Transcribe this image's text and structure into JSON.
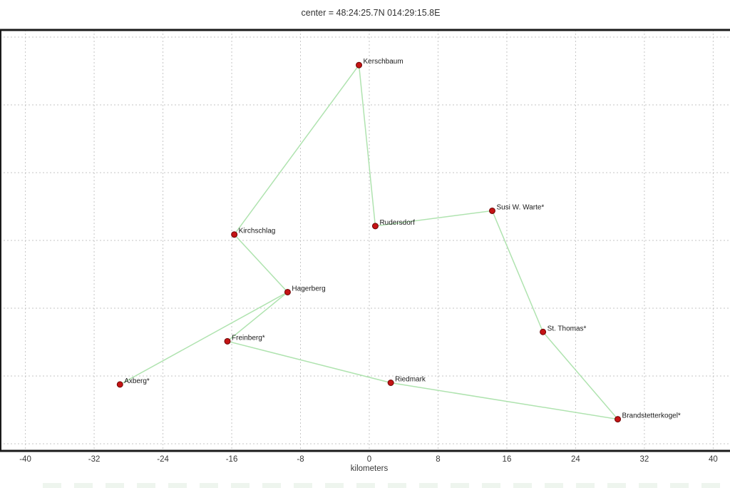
{
  "title": "center = 48:24:25.7N 014:29:15.8E",
  "colors": {
    "marker_fill": "#c41414",
    "marker_edge": "#6e0606",
    "route_line": "#afe3af",
    "grid": "#c6c6c6",
    "border": "#1a1a1a",
    "label_text": "#1a1a1a",
    "tick_text": "#383838"
  },
  "axis": {
    "x_label": "kilometers",
    "x_ticks": [
      -40,
      -32,
      -24,
      -16,
      -8,
      0,
      8,
      16,
      24,
      32,
      40
    ],
    "y_gridline_values": [
      -24,
      -16,
      -8,
      0,
      8,
      16,
      24
    ]
  },
  "chart_data": {
    "type": "scatter",
    "title": "center = 48:24:25.7N 014:29:15.8E",
    "xlabel": "kilometers",
    "ylabel": "",
    "x_ticks": [
      -40,
      -32,
      -24,
      -16,
      -8,
      0,
      8,
      16,
      24,
      32,
      40
    ],
    "xlim": [
      -43,
      42
    ],
    "ylim": [
      -25,
      25
    ],
    "grid": true,
    "legend": false,
    "units": "kilometers from center",
    "points": [
      {
        "name": "Kerschbaum",
        "x": -1.2,
        "y": 20.7
      },
      {
        "name": "Rudersdorf",
        "x": 0.7,
        "y": 1.7
      },
      {
        "name": "Susi W. Warte*",
        "x": 14.3,
        "y": 3.5
      },
      {
        "name": "Kirchschlag",
        "x": -15.7,
        "y": 0.7
      },
      {
        "name": "Hagerberg",
        "x": -9.5,
        "y": -6.1
      },
      {
        "name": "Freinberg*",
        "x": -16.5,
        "y": -11.9
      },
      {
        "name": "Axberg*",
        "x": -29.0,
        "y": -17.0
      },
      {
        "name": "Riedmark",
        "x": 2.5,
        "y": -16.8
      },
      {
        "name": "St. Thomas*",
        "x": 20.2,
        "y": -10.8
      },
      {
        "name": "Brandstetterkogel*",
        "x": 28.9,
        "y": -21.1
      }
    ],
    "route": [
      "Axberg*",
      "Hagerberg",
      "Kirchschlag",
      "Kerschbaum",
      "Rudersdorf",
      "Susi W. Warte*",
      "St. Thomas*",
      "Brandstetterkogel*",
      "Riedmark",
      "Freinberg*",
      "Hagerberg"
    ]
  }
}
